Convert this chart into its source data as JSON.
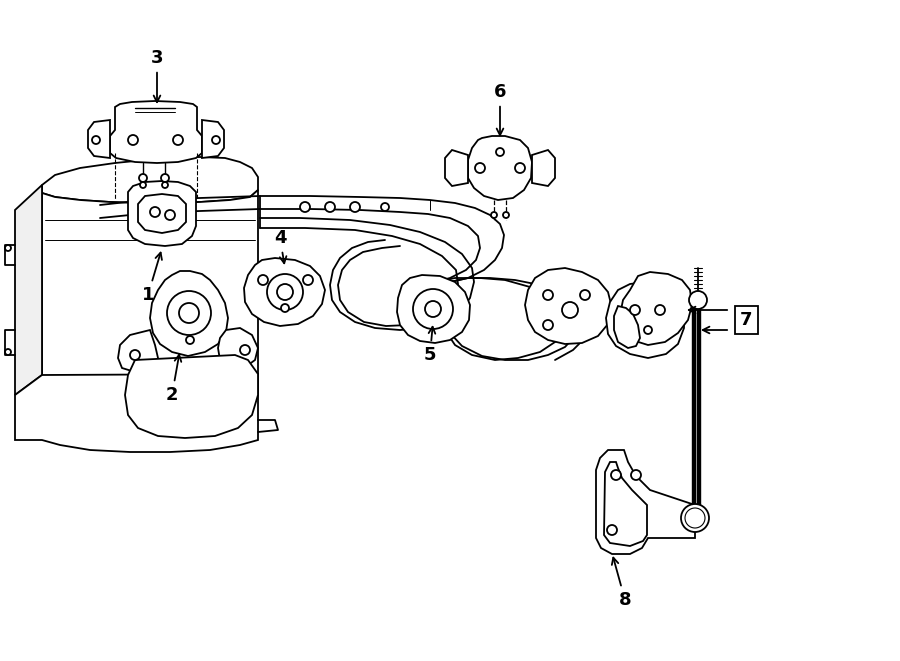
{
  "background_color": "#ffffff",
  "line_color": "#000000",
  "lw": 1.3,
  "figsize": [
    9.0,
    6.61
  ],
  "dpi": 100
}
